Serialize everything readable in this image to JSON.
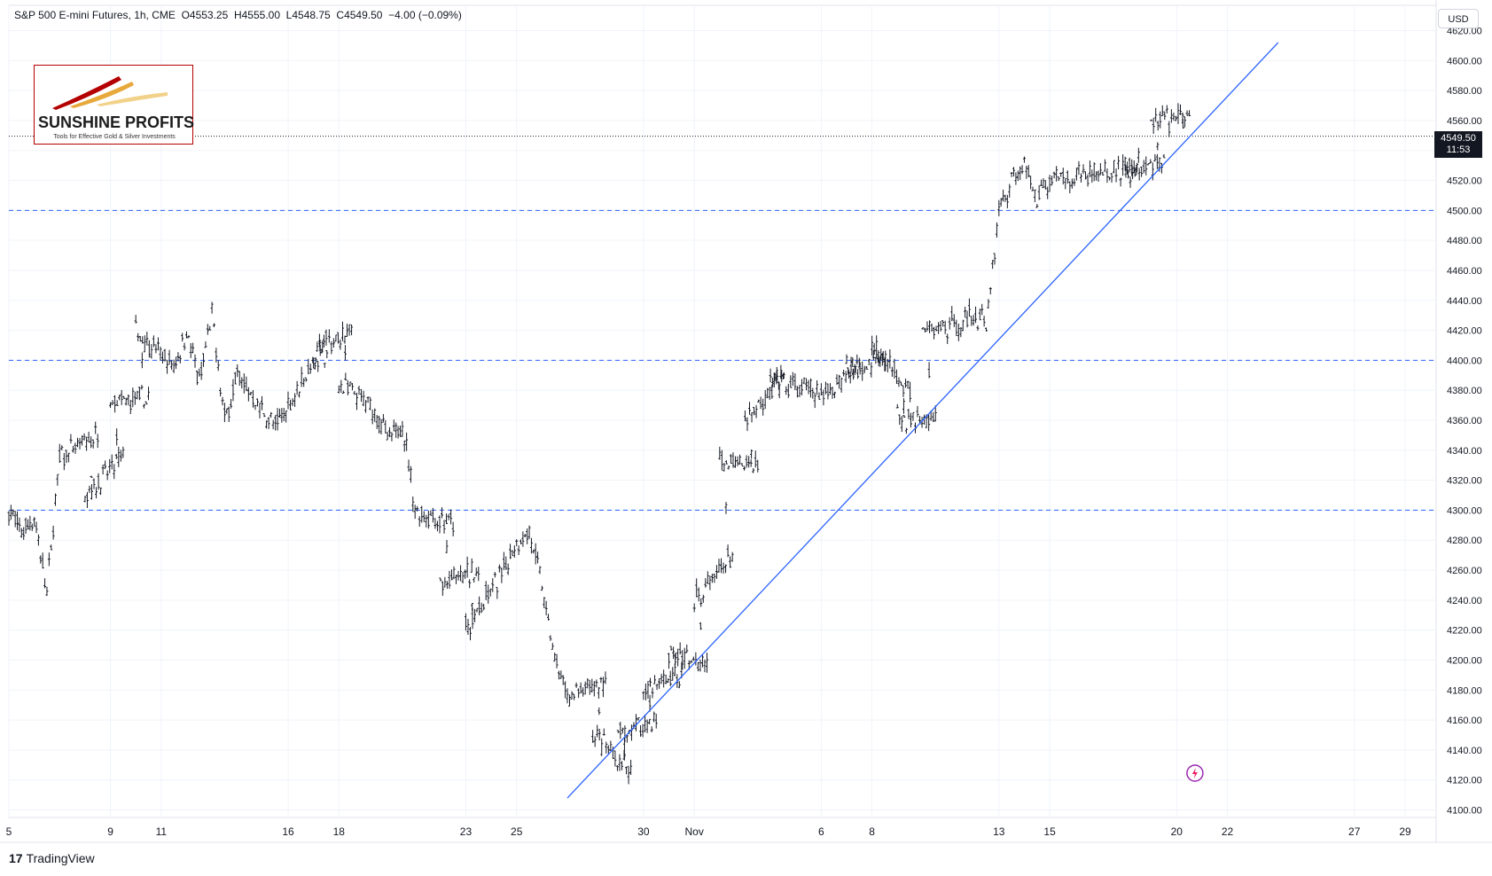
{
  "header": {
    "symbol_name": "S&P 500 E-mini Futures",
    "interval": "1h",
    "exchange": "CME",
    "open": "O4553.25",
    "high": "H4555.00",
    "low": "L4548.75",
    "close": "C4549.50",
    "change": "−4.00 (−0.09%)"
  },
  "currency_button": "USD",
  "logo": {
    "title": "SUNSHINE PROFITS",
    "subtitle": "Tools for Effective Gold & Silver Investments"
  },
  "last_price": {
    "value": "4549.50",
    "countdown": "11:53"
  },
  "brand": {
    "label": "TradingView"
  },
  "colors": {
    "candle": "#131722",
    "trendline": "#2962ff",
    "level_lines": "#2962ff",
    "grid": "#f0f3fa",
    "logo_border": "#b40000"
  },
  "chart_data": {
    "type": "candlestick",
    "timeframe": "1h",
    "ylim": [
      4095,
      4625
    ],
    "y_ticks": [
      "4100.00",
      "4120.00",
      "4140.00",
      "4160.00",
      "4180.00",
      "4200.00",
      "4220.00",
      "4240.00",
      "4260.00",
      "4280.00",
      "4300.00",
      "4320.00",
      "4340.00",
      "4360.00",
      "4380.00",
      "4400.00",
      "4420.00",
      "4440.00",
      "4460.00",
      "4480.00",
      "4500.00",
      "4520.00",
      "4540.00",
      "4560.00",
      "4580.00",
      "4600.00",
      "4620.00"
    ],
    "x_ticks": [
      "5",
      "9",
      "11",
      "16",
      "18",
      "23",
      "25",
      "30",
      "Nov",
      "6",
      "8",
      "13",
      "15",
      "20",
      "22",
      "27",
      "29"
    ],
    "horizontal_levels": [
      4500,
      4400,
      4300
    ],
    "trendline": {
      "start": {
        "date": "Oct 27",
        "price": 4108
      },
      "end": {
        "date": "Nov 24",
        "price": 4612
      }
    },
    "price_path": [
      [
        "Oct 5",
        4300
      ],
      [
        "Oct 5",
        4285
      ],
      [
        "Oct 6",
        4295
      ],
      [
        "Oct 6",
        4245
      ],
      [
        "Oct 7",
        4335
      ],
      [
        "Oct 8",
        4350
      ],
      [
        "Oct 8",
        4310
      ],
      [
        "Oct 9",
        4335
      ],
      [
        "Oct 9",
        4370
      ],
      [
        "Oct 10",
        4375
      ],
      [
        "Oct 10",
        4420
      ],
      [
        "Oct 11",
        4395
      ],
      [
        "Oct 12",
        4420
      ],
      [
        "Oct 12",
        4385
      ],
      [
        "Oct 13",
        4430
      ],
      [
        "Oct 13",
        4360
      ],
      [
        "Oct 14",
        4390
      ],
      [
        "Oct 15",
        4355
      ],
      [
        "Oct 16",
        4370
      ],
      [
        "Oct 17",
        4415
      ],
      [
        "Oct 17",
        4400
      ],
      [
        "Oct 18",
        4420
      ],
      [
        "Oct 18",
        4385
      ],
      [
        "Oct 19",
        4365
      ],
      [
        "Oct 20",
        4345
      ],
      [
        "Oct 20",
        4360
      ],
      [
        "Oct 21",
        4300
      ],
      [
        "Oct 22",
        4290
      ],
      [
        "Oct 22",
        4250
      ],
      [
        "Oct 23",
        4260
      ],
      [
        "Oct 23",
        4220
      ],
      [
        "Oct 24",
        4260
      ],
      [
        "Oct 25",
        4280
      ],
      [
        "Oct 25",
        4285
      ],
      [
        "Oct 26",
        4250
      ],
      [
        "Oct 26",
        4200
      ],
      [
        "Oct 27",
        4175
      ],
      [
        "Oct 28",
        4185
      ],
      [
        "Oct 28",
        4150
      ],
      [
        "Oct 29",
        4125
      ],
      [
        "Oct 29",
        4150
      ],
      [
        "Oct 30",
        4160
      ],
      [
        "Oct 30",
        4180
      ],
      [
        "Oct 31",
        4190
      ],
      [
        "Oct 31",
        4205
      ],
      [
        "Nov 1",
        4200
      ],
      [
        "Nov 1",
        4240
      ],
      [
        "Nov 2",
        4270
      ],
      [
        "Nov 2",
        4330
      ],
      [
        "Nov 3",
        4330
      ],
      [
        "Nov 3",
        4360
      ],
      [
        "Nov 4",
        4390
      ],
      [
        "Nov 4",
        4385
      ],
      [
        "Nov 5",
        4380
      ],
      [
        "Nov 6",
        4375
      ],
      [
        "Nov 7",
        4400
      ],
      [
        "Nov 7",
        4395
      ],
      [
        "Nov 8",
        4400
      ],
      [
        "Nov 8",
        4410
      ],
      [
        "Nov 9",
        4380
      ],
      [
        "Nov 9",
        4360
      ],
      [
        "Nov 10",
        4360
      ],
      [
        "Nov 10",
        4420
      ],
      [
        "Nov 11",
        4425
      ],
      [
        "Nov 12",
        4430
      ],
      [
        "Nov 12",
        4425
      ],
      [
        "Nov 13",
        4500
      ],
      [
        "Nov 13",
        4520
      ],
      [
        "Nov 14",
        4530
      ],
      [
        "Nov 14",
        4510
      ],
      [
        "Nov 15",
        4520
      ],
      [
        "Nov 16",
        4525
      ],
      [
        "Nov 17",
        4525
      ],
      [
        "Nov 18",
        4530
      ],
      [
        "Nov 18",
        4525
      ],
      [
        "Nov 19",
        4530
      ],
      [
        "Nov 19",
        4560
      ],
      [
        "Nov 20",
        4562
      ],
      [
        "Nov 20",
        4550
      ]
    ]
  }
}
